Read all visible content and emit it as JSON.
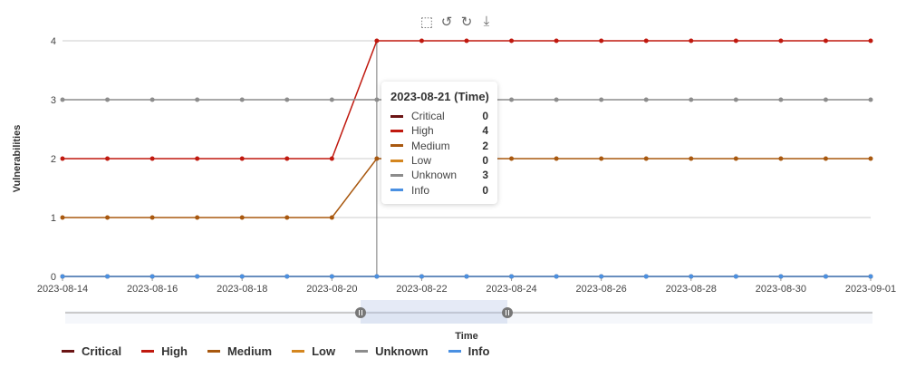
{
  "chart_data": {
    "type": "line",
    "xlabel": "Time",
    "ylabel": "Vulnerabilities",
    "x": [
      "2023-08-14",
      "2023-08-15",
      "2023-08-16",
      "2023-08-17",
      "2023-08-18",
      "2023-08-19",
      "2023-08-20",
      "2023-08-21",
      "2023-08-22",
      "2023-08-23",
      "2023-08-24",
      "2023-08-25",
      "2023-08-26",
      "2023-08-27",
      "2023-08-28",
      "2023-08-29",
      "2023-08-30",
      "2023-08-31",
      "2023-09-01"
    ],
    "xticks": [
      "2023-08-14",
      "2023-08-16",
      "2023-08-18",
      "2023-08-20",
      "2023-08-22",
      "2023-08-24",
      "2023-08-26",
      "2023-08-28",
      "2023-08-30",
      "2023-09-01"
    ],
    "yticks": [
      "0",
      "1",
      "2",
      "3",
      "4"
    ],
    "ylim": [
      0,
      4
    ],
    "grid": true,
    "legend": "bottom",
    "series": [
      {
        "name": "Critical",
        "color": "#6b1414",
        "values": [
          0,
          0,
          0,
          0,
          0,
          0,
          0,
          0,
          0,
          0,
          0,
          0,
          0,
          0,
          0,
          0,
          0,
          0,
          0
        ]
      },
      {
        "name": "High",
        "color": "#c0190f",
        "values": [
          2,
          2,
          2,
          2,
          2,
          2,
          2,
          4,
          4,
          4,
          4,
          4,
          4,
          4,
          4,
          4,
          4,
          4,
          4
        ]
      },
      {
        "name": "Medium",
        "color": "#a8580f",
        "values": [
          1,
          1,
          1,
          1,
          1,
          1,
          1,
          2,
          2,
          2,
          2,
          2,
          2,
          2,
          2,
          2,
          2,
          2,
          2
        ]
      },
      {
        "name": "Low",
        "color": "#d4861f",
        "values": [
          0,
          0,
          0,
          0,
          0,
          0,
          0,
          0,
          0,
          0,
          0,
          0,
          0,
          0,
          0,
          0,
          0,
          0,
          0
        ]
      },
      {
        "name": "Unknown",
        "color": "#8c8c8c",
        "values": [
          3,
          3,
          3,
          3,
          3,
          3,
          3,
          3,
          3,
          3,
          3,
          3,
          3,
          3,
          3,
          3,
          3,
          3,
          3
        ]
      },
      {
        "name": "Info",
        "color": "#4a90e2",
        "values": [
          0,
          0,
          0,
          0,
          0,
          0,
          0,
          0,
          0,
          0,
          0,
          0,
          0,
          0,
          0,
          0,
          0,
          0,
          0
        ]
      }
    ],
    "tooltip": {
      "title": "2023-08-21 (Time)",
      "index": 7
    },
    "zoom_range": [
      "2023-08-20",
      "2023-08-24"
    ]
  },
  "toolbar": {
    "icons": [
      "zoom-select-icon",
      "reset-icon",
      "restore-icon",
      "download-icon"
    ],
    "glyphs": [
      "⬚",
      "↺",
      "↻",
      "⤓"
    ]
  }
}
